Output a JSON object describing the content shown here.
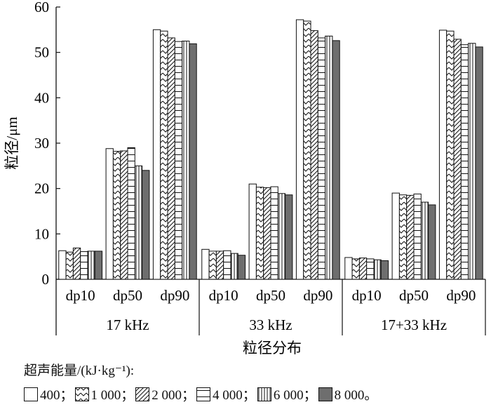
{
  "chart_data": {
    "type": "bar",
    "ylabel": "粒径/μm",
    "xlabel": "粒径分布",
    "ylim": [
      0,
      60
    ],
    "yticks": [
      0,
      10,
      20,
      30,
      40,
      50,
      60
    ],
    "groups": [
      {
        "label": "17 kHz",
        "categories": [
          "dp10",
          "dp50",
          "dp90"
        ]
      },
      {
        "label": "33 kHz",
        "categories": [
          "dp10",
          "dp50",
          "dp90"
        ]
      },
      {
        "label": "17+33 kHz",
        "categories": [
          "dp10",
          "dp50",
          "dp90"
        ]
      }
    ],
    "legend_title": "超声能量/(kJ·kg⁻¹):",
    "series": [
      {
        "name": "400",
        "pattern": "blank",
        "values": [
          6.3,
          28.8,
          55.0,
          6.6,
          21.0,
          57.2,
          4.8,
          19.0,
          54.9
        ]
      },
      {
        "name": "1 000",
        "pattern": "chevron",
        "values": [
          6.0,
          28.2,
          54.7,
          6.2,
          20.3,
          56.9,
          4.5,
          18.6,
          54.7
        ]
      },
      {
        "name": "2 000",
        "pattern": "diagonal",
        "values": [
          6.9,
          28.3,
          53.2,
          6.2,
          20.2,
          54.8,
          4.7,
          18.5,
          52.9
        ]
      },
      {
        "name": "4 000",
        "pattern": "horizontal",
        "values": [
          6.1,
          29.0,
          52.4,
          6.3,
          20.4,
          53.2,
          4.5,
          18.8,
          51.7
        ]
      },
      {
        "name": "6 000",
        "pattern": "vertical",
        "values": [
          6.2,
          25.0,
          52.5,
          5.7,
          18.9,
          53.6,
          4.3,
          17.0,
          52.0
        ]
      },
      {
        "name": "8 000",
        "pattern": "solid",
        "color": "#6e6e6e",
        "values": [
          6.2,
          24.0,
          51.9,
          5.3,
          18.6,
          52.6,
          4.1,
          16.4,
          51.2
        ]
      }
    ],
    "legend_separator": "；",
    "legend_end": "。",
    "grid": false,
    "legend_position": "bottom"
  }
}
